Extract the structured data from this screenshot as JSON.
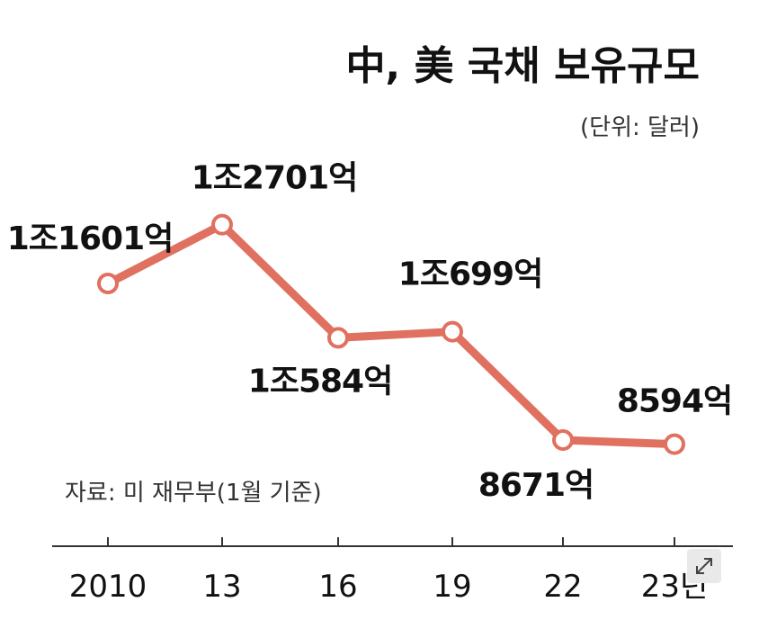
{
  "chart_data": {
    "type": "line",
    "title": "中, 美 국채 보유규모",
    "unit_label": "(단위: 달러)",
    "source": "자료: 미 재무부(1월 기준)",
    "categories": [
      "2010",
      "13",
      "16",
      "19",
      "22",
      "23년"
    ],
    "values": [
      11601,
      12701,
      10584,
      10699,
      8671,
      8594
    ],
    "value_labels": [
      "1조1601억",
      "1조2701억",
      "1조584억",
      "1조699억",
      "8671억",
      "8594억"
    ],
    "series": [
      {
        "values": [
          11601,
          12701,
          10584,
          10699,
          8671,
          8594
        ]
      }
    ],
    "line_color": "#e07060",
    "grid": false
  }
}
